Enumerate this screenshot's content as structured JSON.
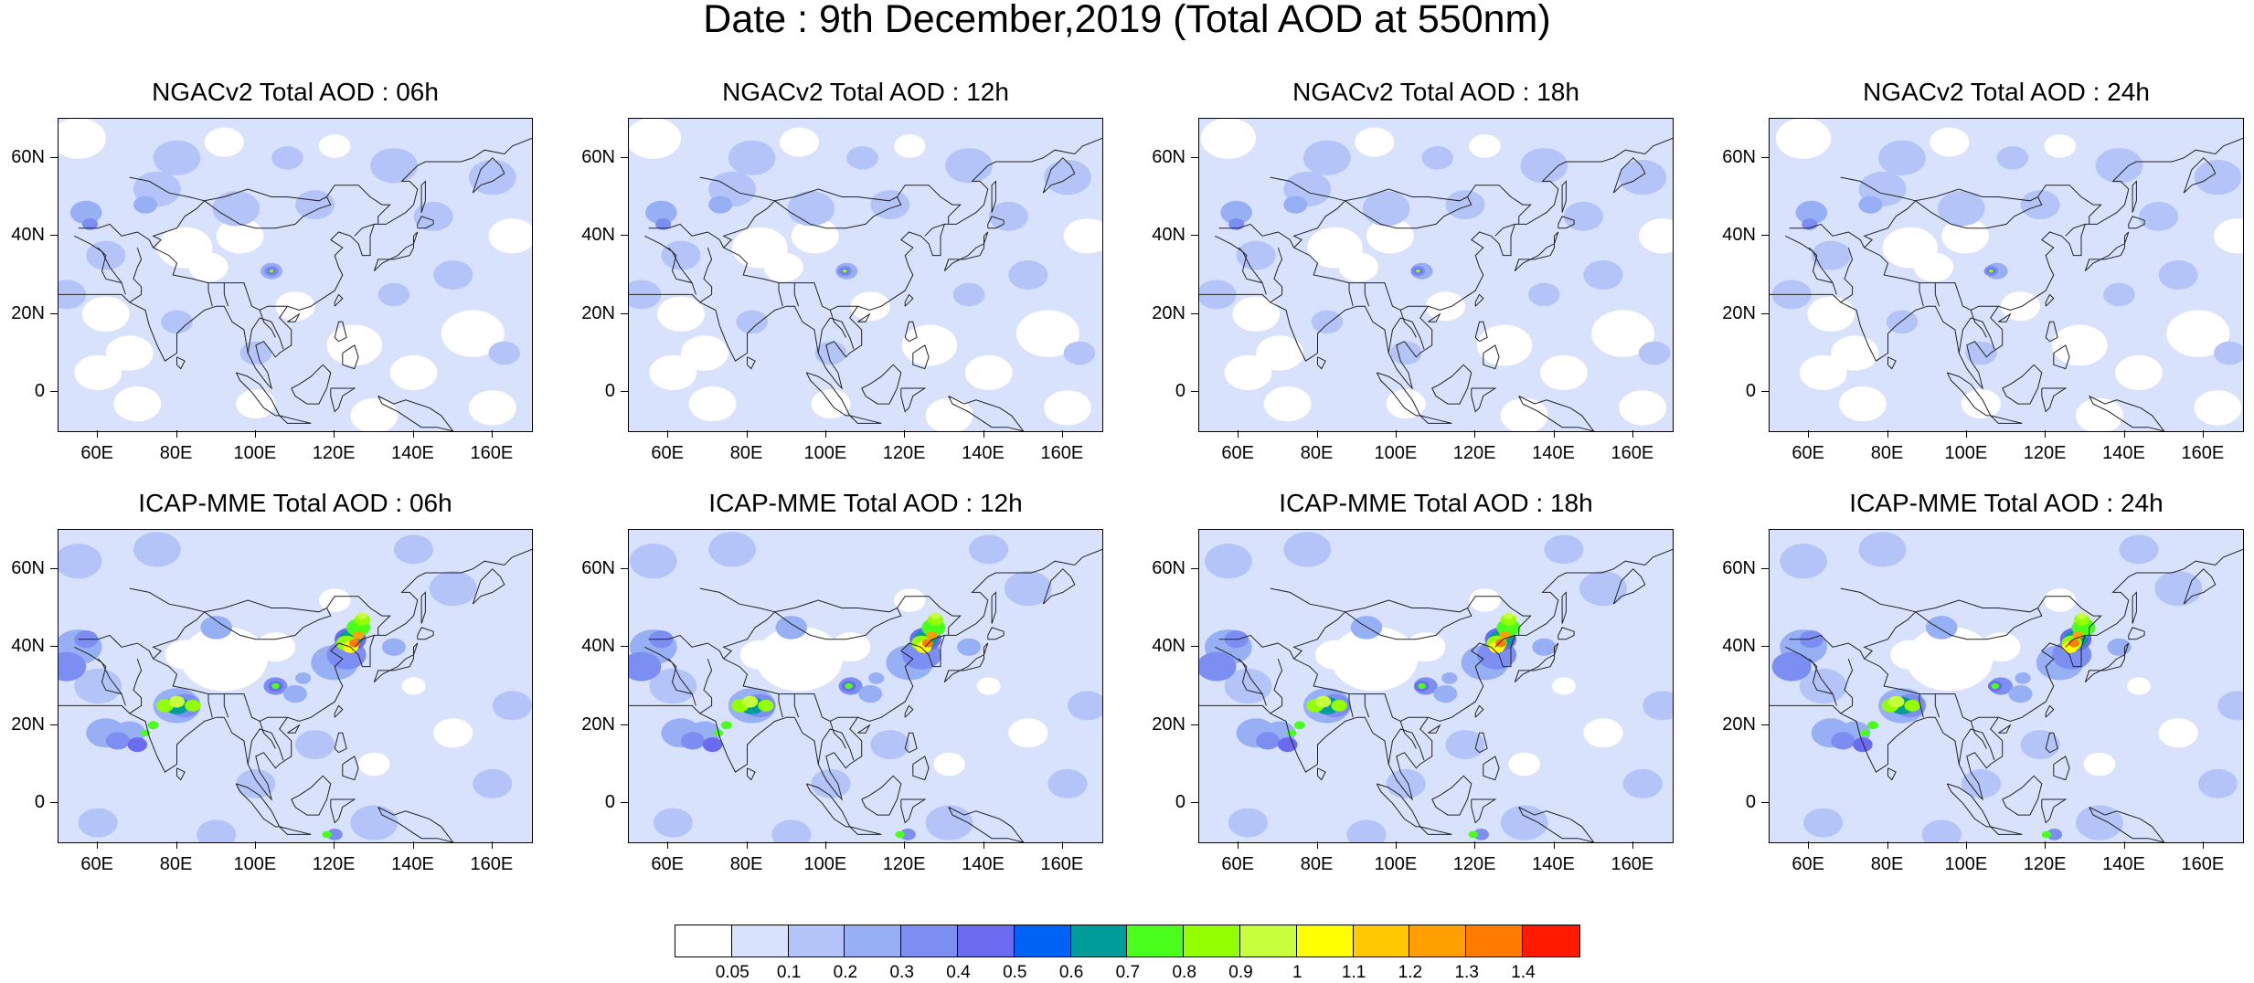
{
  "title": "Date : 9th December,2019 (Total AOD at 550nm)",
  "panels": [
    {
      "title": "NGACv2 Total AOD : 06h",
      "model": "NGAC"
    },
    {
      "title": "NGACv2 Total AOD : 12h",
      "model": "NGAC"
    },
    {
      "title": "NGACv2 Total AOD : 18h",
      "model": "NGAC"
    },
    {
      "title": "NGACv2 Total AOD : 24h",
      "model": "NGAC"
    },
    {
      "title": "ICAP-MME Total AOD : 06h",
      "model": "ICAP"
    },
    {
      "title": "ICAP-MME Total AOD : 12h",
      "model": "ICAP"
    },
    {
      "title": "ICAP-MME Total AOD : 18h",
      "model": "ICAP"
    },
    {
      "title": "ICAP-MME Total AOD : 24h",
      "model": "ICAP"
    }
  ],
  "axes": {
    "lon_ticks": [
      "60E",
      "80E",
      "100E",
      "120E",
      "140E",
      "160E"
    ],
    "lat_ticks": [
      "60N",
      "40N",
      "20N",
      "0"
    ]
  },
  "colorbar": {
    "labels": [
      "0.05",
      "0.1",
      "0.2",
      "0.3",
      "0.4",
      "0.5",
      "0.6",
      "0.7",
      "0.8",
      "0.9",
      "1",
      "1.1",
      "1.2",
      "1.3",
      "1.4"
    ],
    "colors": [
      "#ffffff",
      "#d9e2fd",
      "#b4c4f9",
      "#97b0f5",
      "#7d8ef2",
      "#6a6bee",
      "#0063f5",
      "#009c9a",
      "#4aff1c",
      "#94ff00",
      "#c7ff3c",
      "#ffff00",
      "#ffc800",
      "#ffa000",
      "#ff7c00",
      "#ff1a00"
    ]
  }
}
